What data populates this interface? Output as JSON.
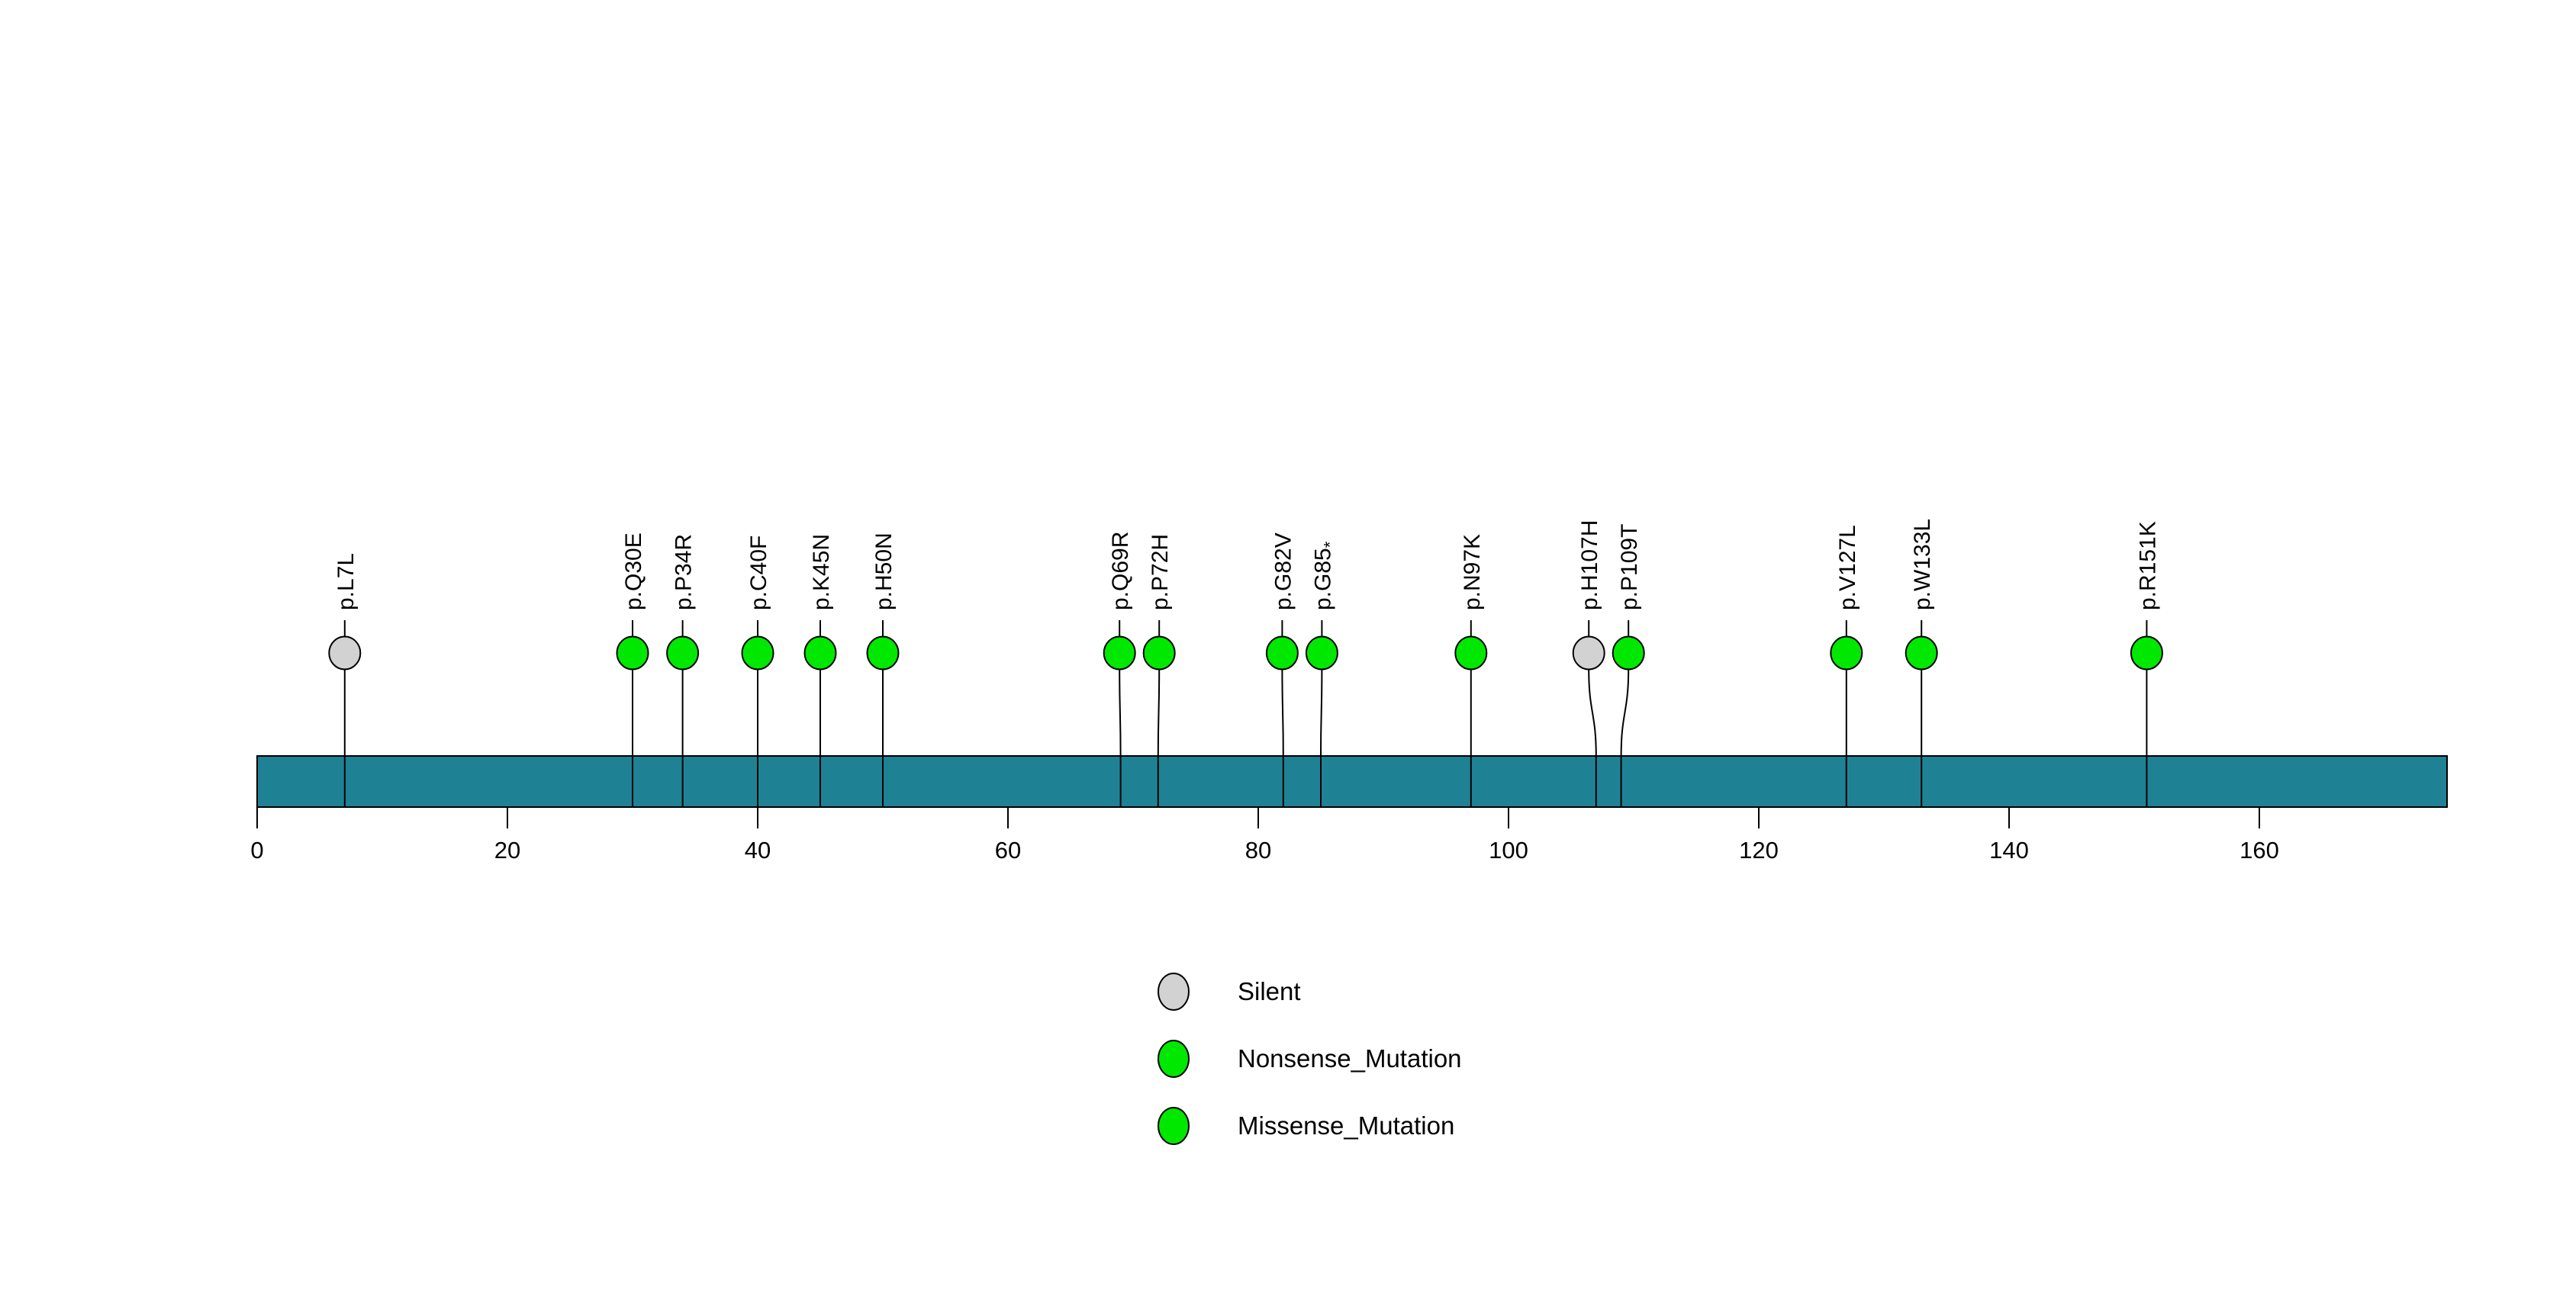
{
  "chart_data": {
    "type": "lollipop",
    "title": "",
    "xlabel": "",
    "ylabel": "",
    "axis": {
      "ticks": [
        0,
        20,
        40,
        60,
        80,
        100,
        120,
        140,
        160
      ],
      "range": [
        0,
        175
      ],
      "grid": false
    },
    "protein_bar": {
      "start": 0,
      "end": 175,
      "fill_color": "#1f8294",
      "outline_color": "#000000"
    },
    "mutations": [
      {
        "label": "p.L7L",
        "position": 7,
        "type": "Silent"
      },
      {
        "label": "p.Q30E",
        "position": 30,
        "type": "Missense_Mutation"
      },
      {
        "label": "p.P34R",
        "position": 34,
        "type": "Missense_Mutation"
      },
      {
        "label": "p.C40F",
        "position": 40,
        "type": "Missense_Mutation"
      },
      {
        "label": "p.K45N",
        "position": 45,
        "type": "Missense_Mutation"
      },
      {
        "label": "p.H50N",
        "position": 50,
        "type": "Missense_Mutation"
      },
      {
        "label": "p.Q69R",
        "position": 69,
        "type": "Missense_Mutation"
      },
      {
        "label": "p.P72H",
        "position": 72,
        "type": "Missense_Mutation"
      },
      {
        "label": "p.G82V",
        "position": 82,
        "type": "Missense_Mutation"
      },
      {
        "label": "p.G85*",
        "position": 85,
        "type": "Nonsense_Mutation"
      },
      {
        "label": "p.N97K",
        "position": 97,
        "type": "Missense_Mutation"
      },
      {
        "label": "p.H107H",
        "position": 107,
        "type": "Silent"
      },
      {
        "label": "p.P109T",
        "position": 109,
        "type": "Missense_Mutation"
      },
      {
        "label": "p.V127L",
        "position": 127,
        "type": "Missense_Mutation"
      },
      {
        "label": "p.W133L",
        "position": 133,
        "type": "Missense_Mutation"
      },
      {
        "label": "p.R151K",
        "position": 151,
        "type": "Missense_Mutation"
      }
    ],
    "type_colors": {
      "Silent": "#d2d2d2",
      "Nonsense_Mutation": "#00e800",
      "Missense_Mutation": "#00e800"
    },
    "marker_outline_color": "#000000",
    "stem_color": "#000000",
    "legend": {
      "position": "bottom-center",
      "entries": [
        {
          "label": "Silent",
          "color": "#d2d2d2"
        },
        {
          "label": "Nonsense_Mutation",
          "color": "#00e800"
        },
        {
          "label": "Missense_Mutation",
          "color": "#00e800"
        }
      ]
    }
  }
}
